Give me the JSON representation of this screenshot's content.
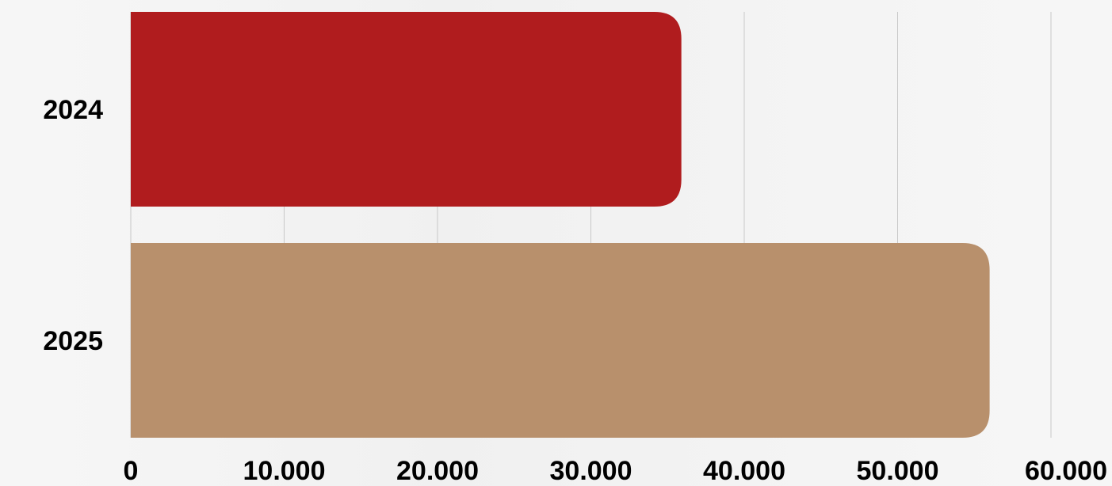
{
  "chart_data": {
    "type": "bar",
    "orientation": "horizontal",
    "categories": [
      "2024",
      "2025"
    ],
    "values": [
      35900,
      56000
    ],
    "colors": [
      "#b01c1e",
      "#b8906c"
    ],
    "xlim": [
      0,
      60000
    ],
    "x_ticks": [
      0,
      10000,
      20000,
      30000,
      40000,
      50000,
      60000
    ],
    "x_tick_labels": [
      "0",
      "10.000",
      "20.000",
      "30.000",
      "40.000",
      "50.000",
      "60.000"
    ],
    "grid": true,
    "grid_color": "#c8c8c8",
    "title": "",
    "xlabel": "",
    "ylabel": ""
  }
}
